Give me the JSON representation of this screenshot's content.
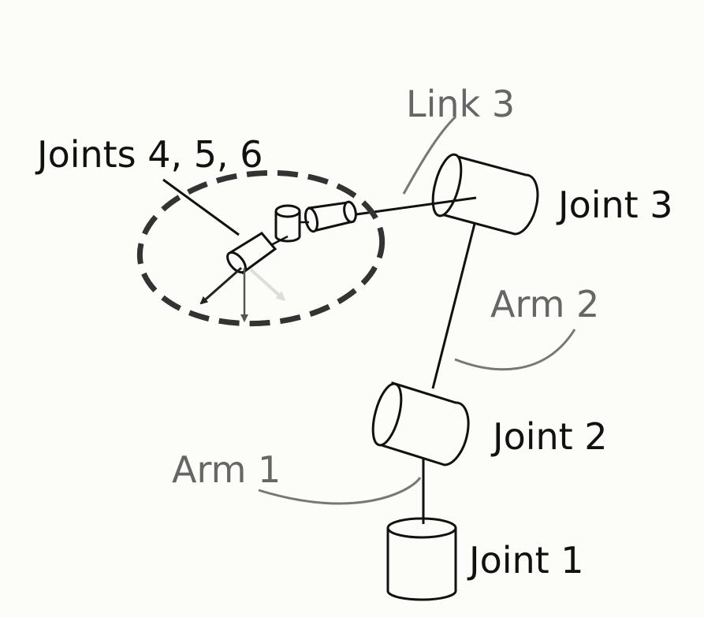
{
  "labels": {
    "joint1": "Joint 1",
    "joint2": "Joint 2",
    "joint3": "Joint 3",
    "joints456": "Joints 4, 5, 6",
    "arm1": "Arm 1",
    "arm2": "Arm 2",
    "link3": "Link 3"
  },
  "colors": {
    "background": "#fcfcf8",
    "line": "#111111",
    "callout": "#666666",
    "dashed_circle": "#333333",
    "light_arrow": "#dddddd"
  }
}
